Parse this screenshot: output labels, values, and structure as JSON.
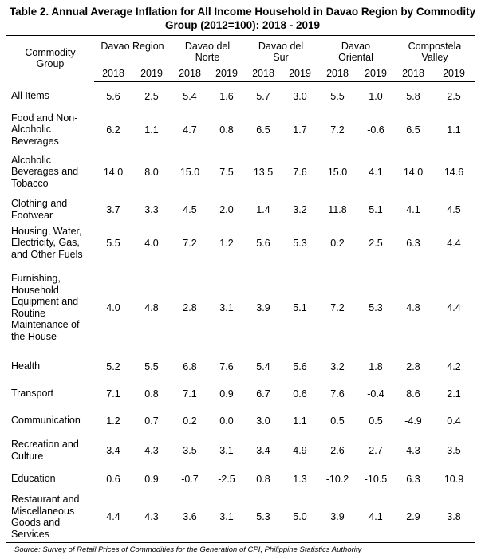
{
  "title": "Table 2. Annual Average Inflation for All Income Household in Davao Region by Commodity Group (2012=100): 2018 - 2019",
  "header": {
    "commodity_group": "Commodity Group",
    "regions": [
      "Davao Region",
      "Davao del Norte",
      "Davao del Sur",
      "Davao Oriental",
      "Compostela Valley"
    ],
    "years": [
      "2018",
      "2019"
    ]
  },
  "rows": [
    {
      "group": "All Items",
      "values": [
        "5.6",
        "2.5",
        "5.4",
        "1.6",
        "5.7",
        "3.0",
        "5.5",
        "1.0",
        "5.8",
        "2.5"
      ]
    },
    {
      "group": "Food and Non-Alcoholic Beverages",
      "values": [
        "6.2",
        "1.1",
        "4.7",
        "0.8",
        "6.5",
        "1.7",
        "7.2",
        "-0.6",
        "6.5",
        "1.1"
      ]
    },
    {
      "group": "Alcoholic Beverages and Tobacco",
      "values": [
        "14.0",
        "8.0",
        "15.0",
        "7.5",
        "13.5",
        "7.6",
        "15.0",
        "4.1",
        "14.0",
        "14.6"
      ]
    },
    {
      "group": "Clothing and Footwear",
      "values": [
        "3.7",
        "3.3",
        "4.5",
        "2.0",
        "1.4",
        "3.2",
        "11.8",
        "5.1",
        "4.1",
        "4.5"
      ]
    },
    {
      "group": "Housing, Water, Electricity, Gas, and Other Fuels",
      "values": [
        "5.5",
        "4.0",
        "7.2",
        "1.2",
        "5.6",
        "5.3",
        "0.2",
        "2.5",
        "6.3",
        "4.4"
      ]
    },
    {
      "group": "Furnishing, Household Equipment and Routine Maintenance of the House",
      "values": [
        "4.0",
        "4.8",
        "2.8",
        "3.1",
        "3.9",
        "5.1",
        "7.2",
        "5.3",
        "4.8",
        "4.4"
      ]
    },
    {
      "group": "Health",
      "values": [
        "5.2",
        "5.5",
        "6.8",
        "7.6",
        "5.4",
        "5.6",
        "3.2",
        "1.8",
        "2.8",
        "4.2"
      ]
    },
    {
      "group": "Transport",
      "values": [
        "7.1",
        "0.8",
        "7.1",
        "0.9",
        "6.7",
        "0.6",
        "7.6",
        "-0.4",
        "8.6",
        "2.1"
      ]
    },
    {
      "group": "Communication",
      "values": [
        "1.2",
        "0.7",
        "0.2",
        "0.0",
        "3.0",
        "1.1",
        "0.5",
        "0.5",
        "-4.9",
        "0.4"
      ]
    },
    {
      "group": "Recreation and Culture",
      "values": [
        "3.4",
        "4.3",
        "3.5",
        "3.1",
        "3.4",
        "4.9",
        "2.6",
        "2.7",
        "4.3",
        "3.5"
      ]
    },
    {
      "group": "Education",
      "values": [
        "0.6",
        "0.9",
        "-0.7",
        "-2.5",
        "0.8",
        "1.3",
        "-10.2",
        "-10.5",
        "6.3",
        "10.9"
      ]
    },
    {
      "group": "Restaurant and Miscellaneous Goods and Services",
      "values": [
        "4.4",
        "4.3",
        "3.6",
        "3.1",
        "5.3",
        "5.0",
        "3.9",
        "4.1",
        "2.9",
        "3.8"
      ]
    }
  ],
  "source": {
    "label": "Source:",
    "text": " Survey of Retail Prices of Commodities for the Generation of CPI, Philippine Statistics Authority"
  }
}
